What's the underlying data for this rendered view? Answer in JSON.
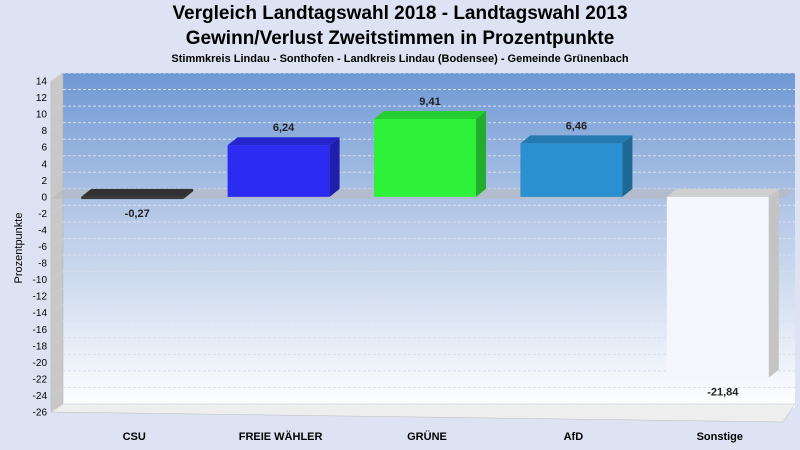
{
  "chart_data": {
    "type": "bar",
    "title": "Vergleich Landtagswahl 2018 - Landtagswahl 2013",
    "title_line2": "Gewinn/Verlust Zweitstimmen in Prozentpunkte",
    "subtitle": "Stimmkreis Lindau - Sonthofen - Landkreis Lindau (Bodensee) - Gemeinde Grünenbach",
    "ylabel": "Prozentpunkte",
    "ylim": [
      -26,
      14
    ],
    "ytick_step": 2,
    "categories": [
      "CSU",
      "FREIE WÄHLER",
      "GRÜNE",
      "AfD",
      "Sonstige"
    ],
    "values": [
      -0.27,
      6.24,
      9.41,
      6.46,
      -21.84
    ],
    "value_labels": [
      "-0,27",
      "6,24",
      "9,41",
      "6,46",
      "-21,84"
    ],
    "colors": [
      "#3a3a3a",
      "#2b2bf2",
      "#2ef23a",
      "#2a90d0",
      "#f4f6fc"
    ],
    "grid": true,
    "legend": "none"
  }
}
